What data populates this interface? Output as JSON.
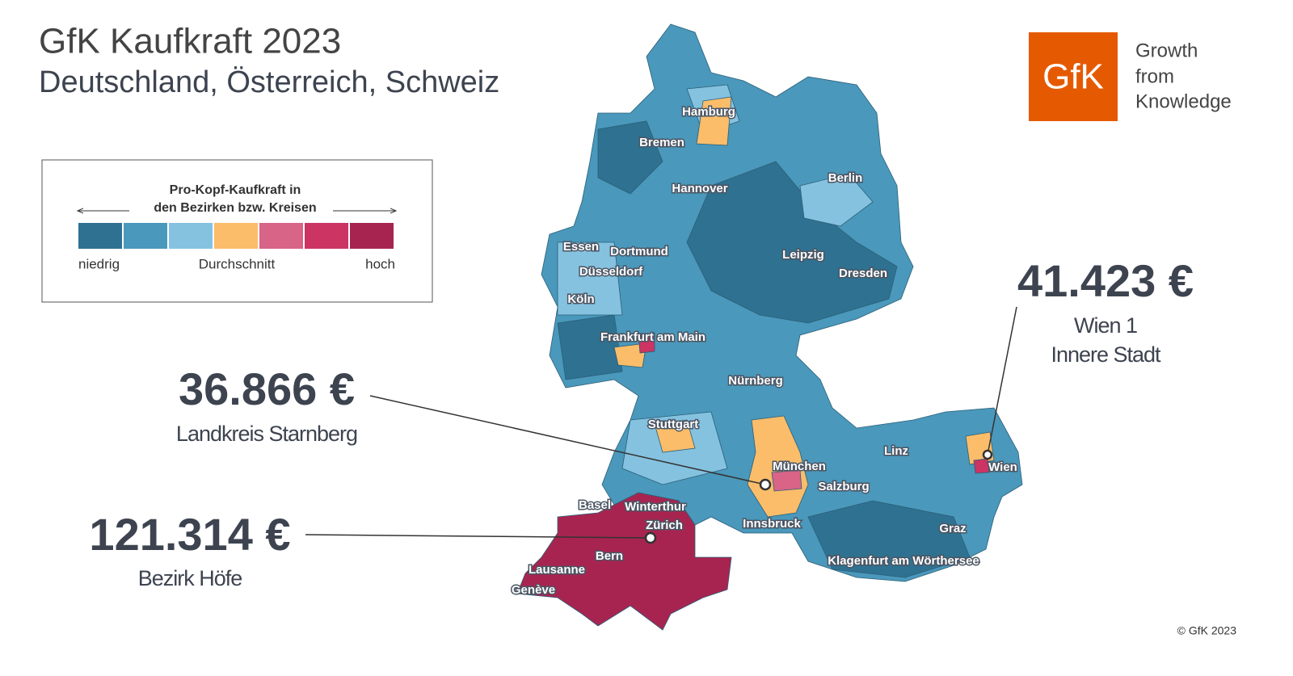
{
  "header": {
    "title": "GfK Kaufkraft 2023",
    "subtitle": "Deutschland, Österreich, Schweiz"
  },
  "logo": {
    "mark": "GfK",
    "tagline": [
      "Growth",
      "from",
      "Knowledge"
    ]
  },
  "legend": {
    "title": [
      "Pro-Kopf-Kaufkraft in",
      "den Bezirken bzw. Kreisen"
    ],
    "colors": [
      "#2f7190",
      "#4a98bb",
      "#85c2e0",
      "#fbbd6a",
      "#d86487",
      "#cb3463",
      "#a82450"
    ],
    "labels": [
      "niedrig",
      "Durchschnitt",
      "hoch"
    ]
  },
  "callouts": [
    {
      "value": "41.423 €",
      "label": [
        "Wien 1",
        "Innere Stadt"
      ]
    },
    {
      "value": "36.866 €",
      "label": [
        "Landkreis Starnberg"
      ]
    },
    {
      "value": "121.314 €",
      "label": [
        "Bezirk Höfe"
      ]
    }
  ],
  "cities": [
    "Hamburg",
    "Bremen",
    "Berlin",
    "Hannover",
    "Essen",
    "Dortmund",
    "Düsseldorf",
    "Leipzig",
    "Dresden",
    "Köln",
    "Frankfurt am Main",
    "Nürnberg",
    "Stuttgart",
    "Linz",
    "Wien",
    "München",
    "Salzburg",
    "Basel",
    "Winterthur",
    "Zürich",
    "Innsbruck",
    "Graz",
    "Bern",
    "Klagenfurt am Wörthersee",
    "Lausanne",
    "Genève"
  ],
  "copyright": "© GfK 2023"
}
